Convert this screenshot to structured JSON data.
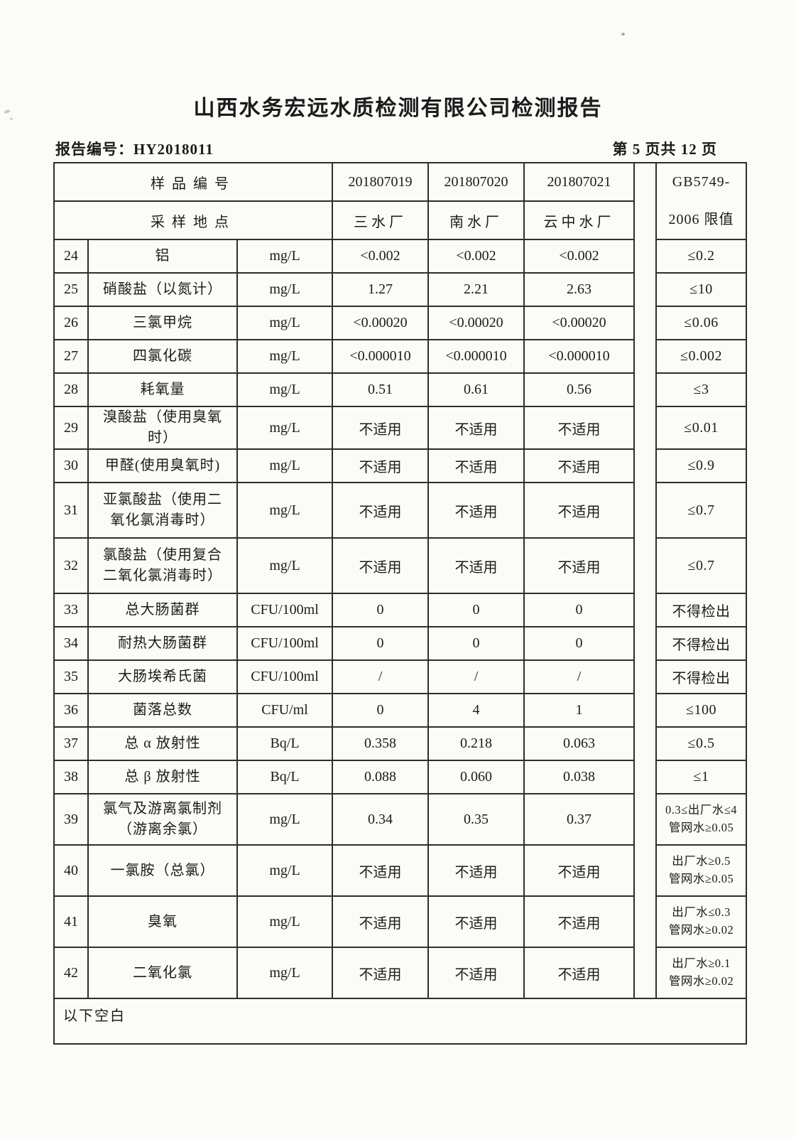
{
  "page": {
    "title": "山西水务宏远水质检测有限公司检测报告",
    "report_no": "报告编号：HY2018011",
    "page_indicator": "第 5 页共 12 页"
  },
  "table": {
    "header": {
      "sample_id_label": "样品编号",
      "sample_site_label": "采样地点",
      "sample_ids": [
        "201807019",
        "201807020",
        "201807021"
      ],
      "sample_sites": [
        "三水厂",
        "南水厂",
        "云中水厂"
      ],
      "limit_header_line1": "GB5749-",
      "limit_header_line2": "2006 限值"
    },
    "rows": [
      {
        "no": "24",
        "name": "铝",
        "unit": "mg/L",
        "values": [
          "<0.002",
          "<0.002",
          "<0.002"
        ],
        "limit": "≤0.2"
      },
      {
        "no": "25",
        "name": "硝酸盐（以氮计）",
        "unit": "mg/L",
        "values": [
          "1.27",
          "2.21",
          "2.63"
        ],
        "limit": "≤10"
      },
      {
        "no": "26",
        "name": "三氯甲烷",
        "unit": "mg/L",
        "values": [
          "<0.00020",
          "<0.00020",
          "<0.00020"
        ],
        "limit": "≤0.06"
      },
      {
        "no": "27",
        "name": "四氯化碳",
        "unit": "mg/L",
        "values": [
          "<0.000010",
          "<0.000010",
          "<0.000010"
        ],
        "limit": "≤0.002"
      },
      {
        "no": "28",
        "name": "耗氧量",
        "unit": "mg/L",
        "values": [
          "0.51",
          "0.61",
          "0.56"
        ],
        "limit": "≤3"
      },
      {
        "no": "29",
        "name": "溴酸盐（使用臭氧\n时）",
        "unit": "mg/L",
        "values": [
          "不适用",
          "不适用",
          "不适用"
        ],
        "limit": "≤0.01"
      },
      {
        "no": "30",
        "name": "甲醛(使用臭氧时)",
        "unit": "mg/L",
        "values": [
          "不适用",
          "不适用",
          "不适用"
        ],
        "limit": "≤0.9"
      },
      {
        "no": "31",
        "name": "亚氯酸盐（使用二\n氧化氯消毒时）",
        "unit": "mg/L",
        "values": [
          "不适用",
          "不适用",
          "不适用"
        ],
        "limit": "≤0.7"
      },
      {
        "no": "32",
        "name": "氯酸盐（使用复合\n二氧化氯消毒时）",
        "unit": "mg/L",
        "values": [
          "不适用",
          "不适用",
          "不适用"
        ],
        "limit": "≤0.7"
      },
      {
        "no": "33",
        "name": "总大肠菌群",
        "unit": "CFU/100ml",
        "values": [
          "0",
          "0",
          "0"
        ],
        "limit": "不得检出"
      },
      {
        "no": "34",
        "name": "耐热大肠菌群",
        "unit": "CFU/100ml",
        "values": [
          "0",
          "0",
          "0"
        ],
        "limit": "不得检出"
      },
      {
        "no": "35",
        "name": "大肠埃希氏菌",
        "unit": "CFU/100ml",
        "values": [
          "/",
          "/",
          "/"
        ],
        "limit": "不得检出"
      },
      {
        "no": "36",
        "name": "菌落总数",
        "unit": "CFU/ml",
        "values": [
          "0",
          "4",
          "1"
        ],
        "limit": "≤100"
      },
      {
        "no": "37",
        "name": "总 α 放射性",
        "unit": "Bq/L",
        "values": [
          "0.358",
          "0.218",
          "0.063"
        ],
        "limit": "≤0.5"
      },
      {
        "no": "38",
        "name": "总 β 放射性",
        "unit": "Bq/L",
        "values": [
          "0.088",
          "0.060",
          "0.038"
        ],
        "limit": "≤1"
      },
      {
        "no": "39",
        "name": "氯气及游离氯制剂\n（游离余氯）",
        "unit": "mg/L",
        "values": [
          "0.34",
          "0.35",
          "0.37"
        ],
        "limit": "0.3≤出厂水≤4\n管网水≥0.05"
      },
      {
        "no": "40",
        "name": "一氯胺（总氯）",
        "unit": "mg/L",
        "values": [
          "不适用",
          "不适用",
          "不适用"
        ],
        "limit": "出厂水≥0.5\n管网水≥0.05"
      },
      {
        "no": "41",
        "name": "臭氧",
        "unit": "mg/L",
        "values": [
          "不适用",
          "不适用",
          "不适用"
        ],
        "limit": "出厂水≤0.3\n管网水≥0.02"
      },
      {
        "no": "42",
        "name": "二氧化氯",
        "unit": "mg/L",
        "values": [
          "不适用",
          "不适用",
          "不适用"
        ],
        "limit": "出厂水≥0.1\n管网水≥0.02"
      }
    ],
    "footer_note": "以下空白"
  }
}
